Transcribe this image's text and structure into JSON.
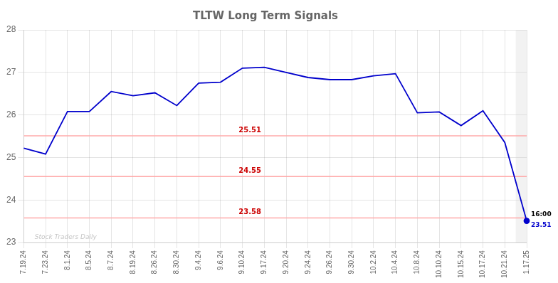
{
  "chart_data": {
    "type": "line",
    "title": "TLTW Long Term Signals",
    "categories": [
      "7.19.24",
      "7.23.24",
      "8.1.24",
      "8.5.24",
      "8.7.24",
      "8.19.24",
      "8.26.24",
      "8.30.24",
      "9.4.24",
      "9.6.24",
      "9.10.24",
      "9.17.24",
      "9.20.24",
      "9.24.24",
      "9.26.24",
      "9.30.24",
      "10.2.24",
      "10.4.24",
      "10.8.24",
      "10.10.24",
      "10.15.24",
      "10.17.24",
      "10.21.24",
      "1.17.25"
    ],
    "values": [
      25.22,
      25.08,
      26.08,
      26.08,
      26.55,
      26.45,
      26.52,
      26.22,
      26.75,
      26.77,
      27.1,
      27.12,
      27.0,
      26.88,
      26.83,
      26.83,
      26.92,
      26.97,
      26.05,
      26.07,
      25.75,
      26.1,
      25.35,
      23.51
    ],
    "color": "#0000cc",
    "ylim": [
      23,
      28
    ],
    "yticks": [
      23,
      24,
      25,
      26,
      27,
      28
    ],
    "grid": true,
    "hlines": [
      {
        "value": 25.51,
        "label": "25.51",
        "color": "#ffaaaa",
        "label_color": "#cc0000"
      },
      {
        "value": 24.55,
        "label": "24.55",
        "color": "#ffaaaa",
        "label_color": "#cc0000"
      },
      {
        "value": 23.58,
        "label": "23.58",
        "color": "#ffaaaa",
        "label_color": "#cc0000"
      }
    ],
    "shade": {
      "category": "1.17.25",
      "color": "#cccccc"
    },
    "annotations": [
      {
        "text": "16:00",
        "color": "#000000"
      },
      {
        "text": "23.51",
        "color": "#0000cc"
      }
    ],
    "watermark": {
      "text": "Stock Traders Daily",
      "color": "#bbbbbb"
    }
  }
}
